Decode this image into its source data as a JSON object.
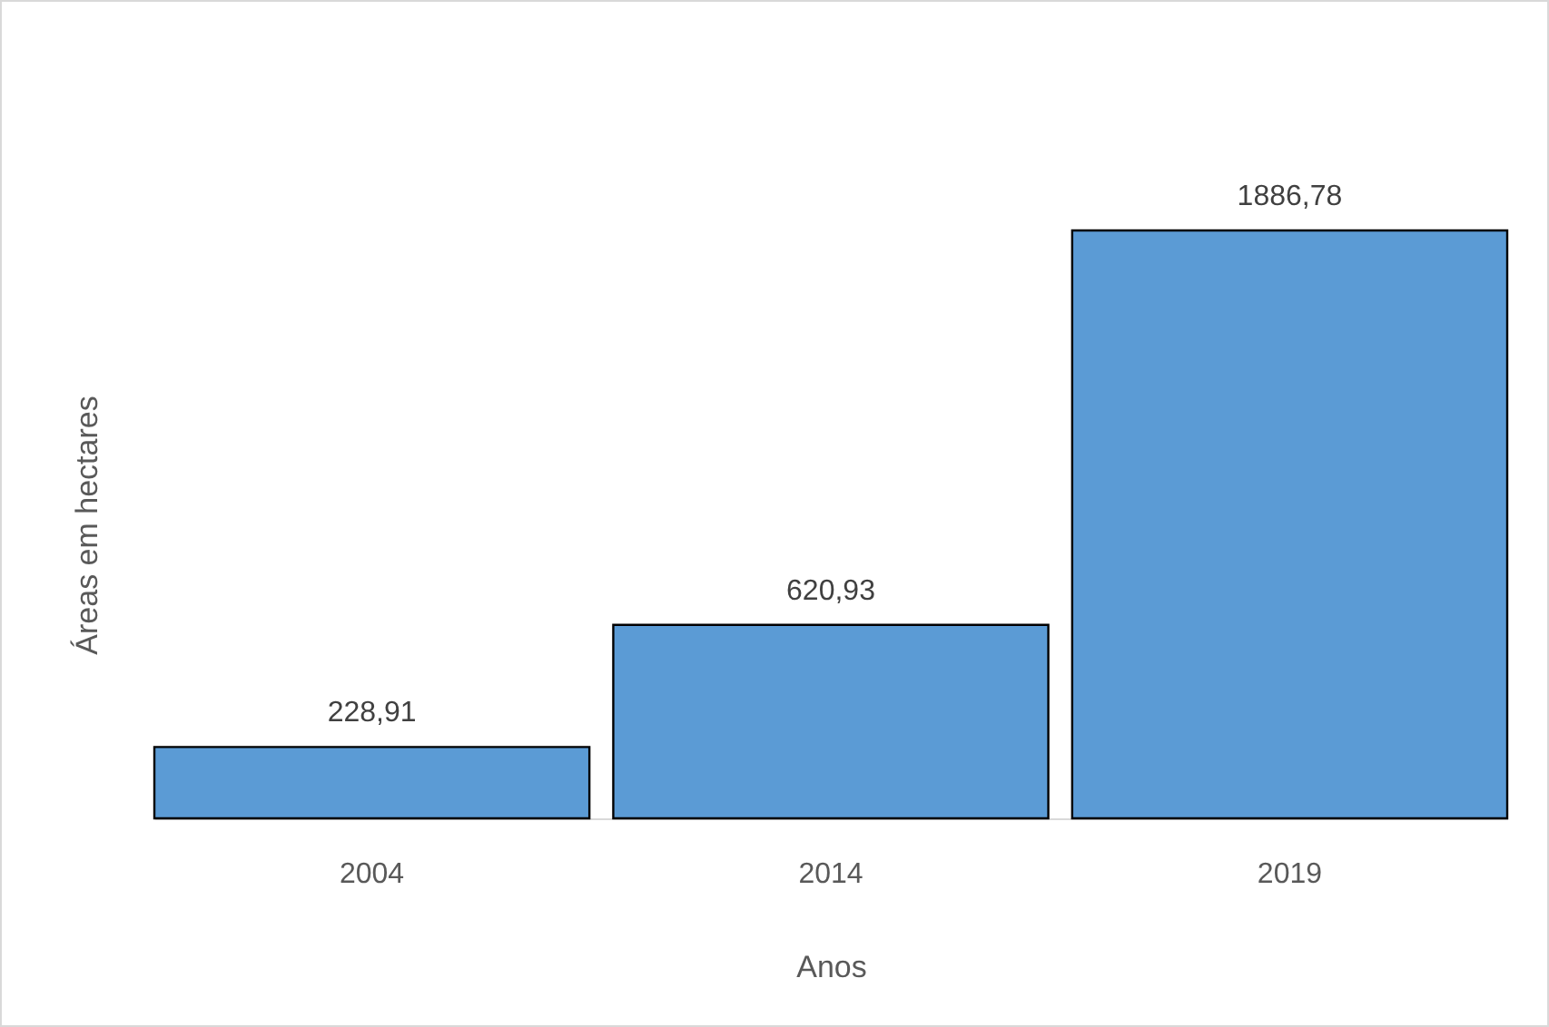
{
  "chart_data": {
    "type": "bar",
    "xlabel": "Anos",
    "ylabel": "Áreas em hectares",
    "categories": [
      "2004",
      "2014",
      "2019"
    ],
    "values": [
      228.91,
      620.93,
      1886.78
    ],
    "value_labels": [
      "228,91",
      "620,93",
      "1886,78"
    ],
    "color": "#5b9bd5"
  }
}
